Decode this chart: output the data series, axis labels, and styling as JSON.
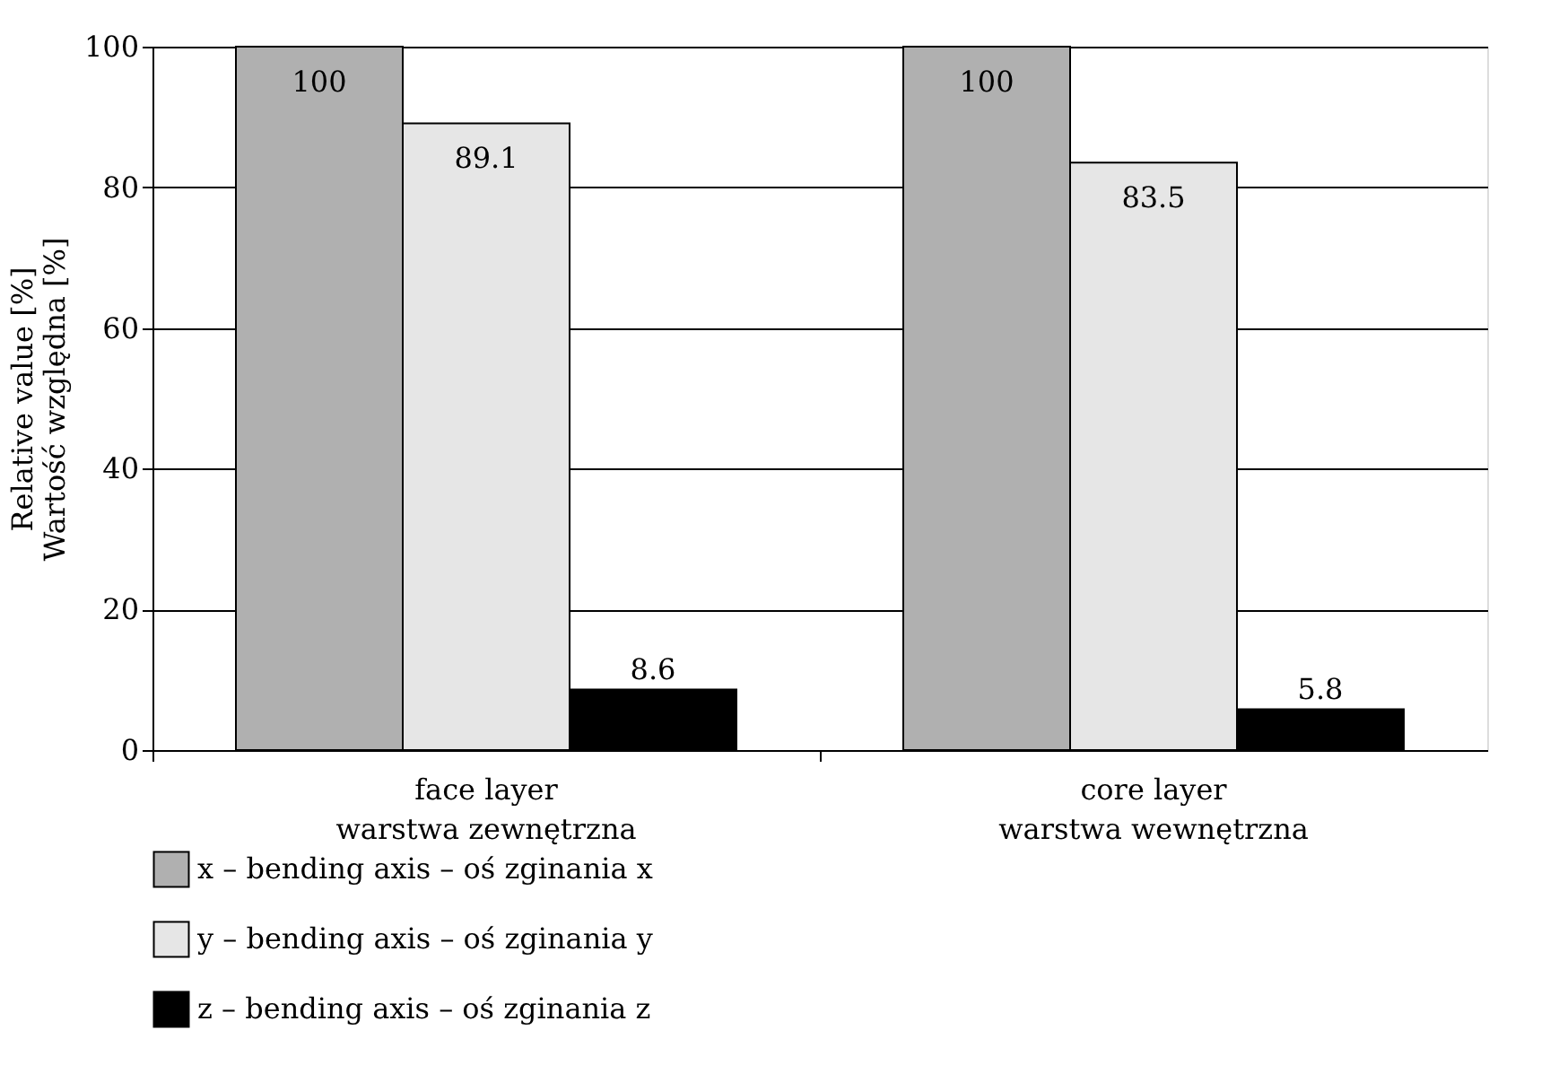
{
  "chart_data": {
    "type": "bar",
    "categories": [
      "face layer\nwarstwa zewnętrzna",
      "core layer\nwarstwa wewnętrzna"
    ],
    "ylabel": "Relative value [%]\nWartość względna [%]",
    "series": [
      {
        "name": "x – bending axis – oś zginania x",
        "color": "#b0b0b0",
        "values": [
          100,
          100
        ]
      },
      {
        "name": "y – bending axis – oś zginania y",
        "color": "#e6e6e6",
        "values": [
          89.1,
          83.5
        ]
      },
      {
        "name": "z – bending axis – oś zginania z",
        "color": "#000000",
        "values": [
          8.6,
          5.8
        ]
      }
    ],
    "ylim": [
      0,
      100
    ],
    "yticks": [
      0,
      20,
      40,
      60,
      80,
      100
    ],
    "grid": "y",
    "legend": "bottom",
    "data_labels": true
  }
}
